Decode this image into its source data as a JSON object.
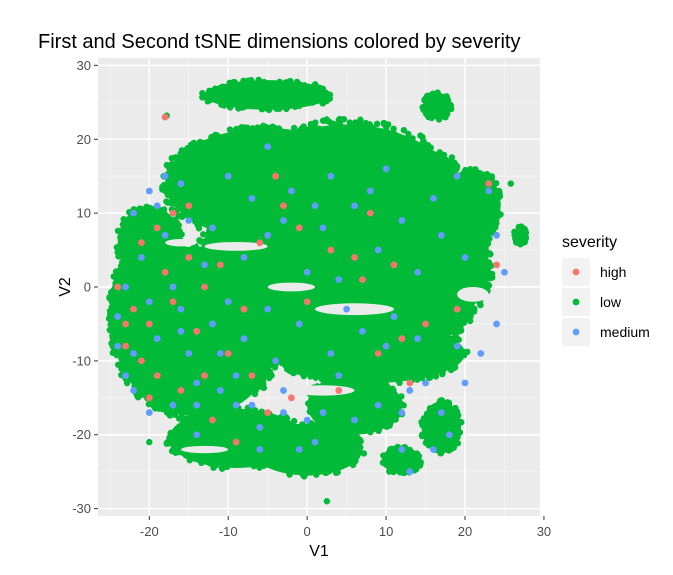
{
  "chart_data": {
    "type": "scatter",
    "title": "First and Second tSNE dimensions colored by severity",
    "xlabel": "V1",
    "ylabel": "V2",
    "xlim": [
      -26.5,
      29.5
    ],
    "ylim": [
      -31,
      31
    ],
    "xticks": [
      -20,
      -10,
      0,
      10,
      20,
      30
    ],
    "yticks": [
      -30,
      -20,
      -10,
      0,
      10,
      20,
      30
    ],
    "xtick_labels": [
      "-20",
      "-10",
      "0",
      "10",
      "20",
      "30"
    ],
    "ytick_labels": [
      "-30",
      "-20",
      "-10",
      "0",
      "10",
      "20",
      "30"
    ],
    "grid": true,
    "background": "#ebebeb",
    "legend": {
      "title": "severity",
      "placement": "right",
      "entries": [
        {
          "name": "high",
          "color": "#f8766d"
        },
        {
          "name": "low",
          "color": "#00ba38"
        },
        {
          "name": "medium",
          "color": "#619cff"
        }
      ]
    },
    "series": [
      {
        "name": "low",
        "color": "#00ba38",
        "regions": [
          {
            "shape": "ellipse",
            "cx": -14,
            "cy": -6,
            "rx": 10.5,
            "ry": 11.5
          },
          {
            "shape": "ellipse",
            "cx": 5,
            "cy": 5,
            "rx": 18,
            "ry": 17
          },
          {
            "shape": "ellipse",
            "cx": -5,
            "cy": 14,
            "rx": 13,
            "ry": 7.5
          },
          {
            "shape": "ellipse",
            "cx": -5,
            "cy": 26,
            "rx": 8,
            "ry": 2
          },
          {
            "shape": "ellipse",
            "cx": -9,
            "cy": -20.5,
            "rx": 8.5,
            "ry": 4
          },
          {
            "shape": "ellipse",
            "cx": 0,
            "cy": -22,
            "rx": 7,
            "ry": 3.5
          },
          {
            "shape": "ellipse",
            "cx": 8,
            "cy": -9,
            "rx": 12,
            "ry": 4
          },
          {
            "shape": "ellipse",
            "cx": 6,
            "cy": -16,
            "rx": 6,
            "ry": 4
          },
          {
            "shape": "ellipse",
            "cx": 17,
            "cy": -19,
            "rx": 2.5,
            "ry": 3.5
          },
          {
            "shape": "ellipse",
            "cx": 12,
            "cy": -23.5,
            "rx": 2.5,
            "ry": 1.8
          },
          {
            "shape": "ellipse",
            "cx": 16.5,
            "cy": 24.5,
            "rx": 1.8,
            "ry": 1.8
          },
          {
            "shape": "ellipse",
            "cx": 27,
            "cy": 7,
            "rx": 0.8,
            "ry": 1.2
          },
          {
            "shape": "ellipse",
            "cx": 21,
            "cy": 11,
            "rx": 3.5,
            "ry": 5
          },
          {
            "shape": "ellipse",
            "cx": -20,
            "cy": 6,
            "rx": 4,
            "ry": 5
          },
          {
            "shape": "ellipse",
            "cx": -22,
            "cy": -3,
            "rx": 3,
            "ry": 7
          }
        ],
        "points": [
          [
            2.5,
            -29
          ],
          [
            -17.8,
            23.2
          ],
          [
            25.8,
            14
          ],
          [
            21,
            15.5
          ],
          [
            -20,
            -21
          ]
        ]
      },
      {
        "name": "high",
        "color": "#f8766d",
        "points": [
          [
            -18,
            23
          ],
          [
            -17,
            10
          ],
          [
            -19,
            8
          ],
          [
            -15,
            4
          ],
          [
            -22,
            -3
          ],
          [
            -20,
            -5
          ],
          [
            -23,
            -8
          ],
          [
            -14,
            -6
          ],
          [
            -13,
            -12
          ],
          [
            -10,
            -9
          ],
          [
            -8,
            -3
          ],
          [
            -16,
            -14
          ],
          [
            -19,
            -12
          ],
          [
            -21,
            -10
          ],
          [
            -5,
            -17
          ],
          [
            0,
            -2
          ],
          [
            3,
            5
          ],
          [
            8,
            10
          ],
          [
            11,
            3
          ],
          [
            6,
            4
          ],
          [
            -11,
            3
          ],
          [
            9,
            -9
          ],
          [
            13,
            -13
          ],
          [
            23,
            14
          ],
          [
            24,
            3
          ],
          [
            -4,
            15
          ],
          [
            -6,
            6
          ],
          [
            -2,
            -15
          ],
          [
            -24,
            0
          ],
          [
            -18,
            2
          ],
          [
            -12,
            -18
          ],
          [
            -7,
            -12
          ],
          [
            4,
            -14
          ],
          [
            19,
            -3
          ],
          [
            -15,
            11
          ],
          [
            -21,
            6
          ],
          [
            15,
            -5
          ],
          [
            7,
            1
          ],
          [
            -9,
            -21
          ],
          [
            -1,
            8
          ],
          [
            -17,
            -2
          ],
          [
            -23,
            -5
          ],
          [
            -13,
            0
          ],
          [
            -20,
            -15
          ],
          [
            -3,
            11
          ],
          [
            12,
            -7
          ]
        ]
      },
      {
        "name": "medium",
        "color": "#619cff",
        "points": [
          [
            -20,
            13
          ],
          [
            -16,
            14
          ],
          [
            -15,
            9
          ],
          [
            -18,
            7
          ],
          [
            -21,
            4
          ],
          [
            -23,
            0
          ],
          [
            -24,
            -4
          ],
          [
            -22,
            -9
          ],
          [
            -23,
            -12
          ],
          [
            -20,
            -17
          ],
          [
            -17,
            -16
          ],
          [
            -14,
            -13
          ],
          [
            -12,
            -5
          ],
          [
            -16,
            -3
          ],
          [
            -11,
            -9
          ],
          [
            -9,
            -16
          ],
          [
            -6,
            -19
          ],
          [
            -3,
            -17
          ],
          [
            0,
            -18
          ],
          [
            2,
            -17
          ],
          [
            4,
            -12
          ],
          [
            6,
            -18
          ],
          [
            9,
            -16
          ],
          [
            10,
            -8
          ],
          [
            13,
            -14
          ],
          [
            17,
            -17
          ],
          [
            18,
            -20
          ],
          [
            20,
            -13
          ],
          [
            12,
            -22
          ],
          [
            13,
            -25
          ],
          [
            24,
            -5
          ],
          [
            25,
            2
          ],
          [
            24,
            7
          ],
          [
            23,
            13
          ],
          [
            19,
            15
          ],
          [
            16,
            12
          ],
          [
            12,
            9
          ],
          [
            8,
            13
          ],
          [
            6,
            11
          ],
          [
            2,
            8
          ],
          [
            -3,
            9
          ],
          [
            -7,
            12
          ],
          [
            -10,
            15
          ],
          [
            -5,
            19
          ],
          [
            3,
            15
          ],
          [
            10,
            16
          ],
          [
            0,
            2
          ],
          [
            -5,
            -3
          ],
          [
            -8,
            -7
          ],
          [
            -13,
            3
          ],
          [
            -17,
            0
          ],
          [
            -19,
            -7
          ],
          [
            -14,
            -20
          ],
          [
            -9,
            -12
          ],
          [
            -4,
            -10
          ],
          [
            -1,
            -5
          ],
          [
            5,
            -3
          ],
          [
            14,
            -7
          ],
          [
            -22,
            10
          ],
          [
            -18,
            15
          ],
          [
            1,
            -21
          ],
          [
            -6,
            -22
          ],
          [
            16,
            -22
          ],
          [
            7,
            -6
          ],
          [
            20,
            4
          ],
          [
            -24,
            -8
          ],
          [
            -11,
            -14
          ],
          [
            -2,
            13
          ],
          [
            11,
            -4
          ],
          [
            -15,
            -9
          ],
          [
            -20,
            -2
          ],
          [
            14,
            2
          ],
          [
            -8,
            4
          ],
          [
            22,
            -9
          ],
          [
            -12,
            8
          ],
          [
            4,
            1
          ],
          [
            -16,
            -6
          ],
          [
            -7,
            -16
          ],
          [
            3,
            -9
          ],
          [
            17,
            7
          ],
          [
            -19,
            11
          ],
          [
            9,
            5
          ],
          [
            -3,
            -14
          ],
          [
            15,
            -13
          ],
          [
            -10,
            -2
          ],
          [
            -22,
            -14
          ],
          [
            1,
            11
          ],
          [
            -5,
            7
          ],
          [
            12,
            -17
          ],
          [
            -14,
            -16
          ],
          [
            19,
            -8
          ],
          [
            -1,
            -22
          ]
        ]
      }
    ]
  }
}
